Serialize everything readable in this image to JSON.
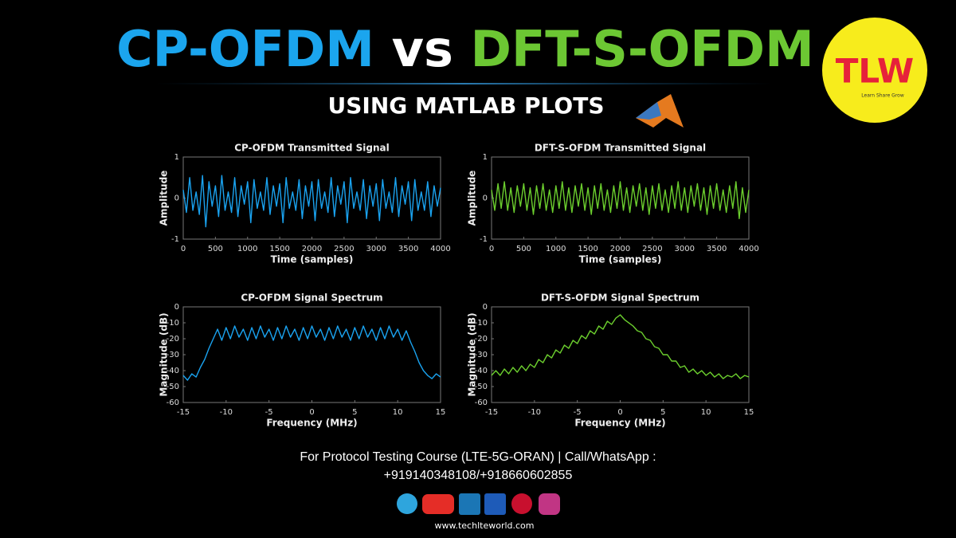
{
  "header": {
    "title_parts": [
      "CP-OFDM",
      "vs",
      "DFT-S-OFDM"
    ],
    "subtitle": "USING MATLAB PLOTS"
  },
  "logo": {
    "text": "TLW",
    "tagline": "Learn Share Grow"
  },
  "footer": {
    "line1": "For Protocol Testing Course (LTE-5G-ORAN) | Call/WhatsApp :",
    "line2": "+919140348108/+918660602855",
    "website": "www.techlteworld.com"
  },
  "chart_data": [
    {
      "type": "line",
      "title": "CP-OFDM Transmitted Signal",
      "xlabel": "Time (samples)",
      "ylabel": "Amplitude",
      "color": "#1aa3f0",
      "xlim": [
        0,
        4000
      ],
      "ylim": [
        -1,
        1
      ],
      "xticks": [
        0,
        500,
        1000,
        1500,
        2000,
        2500,
        3000,
        3500,
        4000
      ],
      "yticks": [
        -1,
        0,
        1
      ],
      "x": [
        0,
        50,
        100,
        150,
        200,
        250,
        300,
        350,
        400,
        450,
        500,
        550,
        600,
        650,
        700,
        750,
        800,
        850,
        900,
        950,
        1000,
        1050,
        1100,
        1150,
        1200,
        1250,
        1300,
        1350,
        1400,
        1450,
        1500,
        1550,
        1600,
        1650,
        1700,
        1750,
        1800,
        1850,
        1900,
        1950,
        2000,
        2050,
        2100,
        2150,
        2200,
        2250,
        2300,
        2350,
        2400,
        2450,
        2500,
        2550,
        2600,
        2650,
        2700,
        2750,
        2800,
        2850,
        2900,
        2950,
        3000,
        3050,
        3100,
        3150,
        3200,
        3250,
        3300,
        3350,
        3400,
        3450,
        3500,
        3550,
        3600,
        3650,
        3700,
        3750,
        3800,
        3850,
        3900,
        3950,
        4000
      ],
      "values": [
        0.2,
        -0.35,
        0.5,
        -0.3,
        0.15,
        -0.4,
        0.55,
        -0.7,
        0.4,
        -0.2,
        0.3,
        -0.45,
        0.55,
        -0.3,
        0.15,
        -0.35,
        0.5,
        -0.45,
        0.3,
        -0.15,
        0.4,
        -0.6,
        0.45,
        -0.25,
        0.15,
        -0.3,
        0.5,
        -0.4,
        0.3,
        -0.2,
        0.35,
        -0.6,
        0.5,
        -0.25,
        0.15,
        -0.3,
        0.45,
        -0.5,
        0.3,
        -0.2,
        0.4,
        -0.55,
        0.45,
        -0.25,
        0.15,
        -0.35,
        0.5,
        -0.45,
        0.3,
        -0.15,
        0.4,
        -0.6,
        0.5,
        -0.25,
        0.15,
        -0.3,
        0.45,
        -0.5,
        0.3,
        -0.2,
        0.35,
        -0.55,
        0.45,
        -0.25,
        0.15,
        -0.35,
        0.5,
        -0.45,
        0.3,
        -0.15,
        0.4,
        -0.55,
        0.45,
        -0.3,
        0.15,
        -0.3,
        0.4,
        -0.45,
        0.3,
        -0.2,
        0.25
      ]
    },
    {
      "type": "line",
      "title": "DFT-S-OFDM Transmitted Signal",
      "xlabel": "Time (samples)",
      "ylabel": "Amplitude",
      "color": "#6ccf2e",
      "xlim": [
        0,
        4000
      ],
      "ylim": [
        -1,
        1
      ],
      "xticks": [
        0,
        500,
        1000,
        1500,
        2000,
        2500,
        3000,
        3500,
        4000
      ],
      "yticks": [
        -1,
        0,
        1
      ],
      "x": [
        0,
        50,
        100,
        150,
        200,
        250,
        300,
        350,
        400,
        450,
        500,
        550,
        600,
        650,
        700,
        750,
        800,
        850,
        900,
        950,
        1000,
        1050,
        1100,
        1150,
        1200,
        1250,
        1300,
        1350,
        1400,
        1450,
        1500,
        1550,
        1600,
        1650,
        1700,
        1750,
        1800,
        1850,
        1900,
        1950,
        2000,
        2050,
        2100,
        2150,
        2200,
        2250,
        2300,
        2350,
        2400,
        2450,
        2500,
        2550,
        2600,
        2650,
        2700,
        2750,
        2800,
        2850,
        2900,
        2950,
        3000,
        3050,
        3100,
        3150,
        3200,
        3250,
        3300,
        3350,
        3400,
        3450,
        3500,
        3550,
        3600,
        3650,
        3700,
        3750,
        3800,
        3850,
        3900,
        3950,
        4000
      ],
      "values": [
        0.2,
        -0.3,
        0.35,
        -0.25,
        0.4,
        -0.3,
        0.25,
        -0.35,
        0.3,
        -0.2,
        0.35,
        -0.3,
        0.25,
        -0.4,
        0.3,
        -0.25,
        0.35,
        -0.3,
        0.2,
        -0.35,
        0.3,
        -0.25,
        0.4,
        -0.3,
        0.25,
        -0.35,
        0.3,
        -0.2,
        0.35,
        -0.3,
        0.25,
        -0.4,
        0.3,
        -0.25,
        0.35,
        -0.3,
        0.2,
        -0.35,
        0.3,
        -0.25,
        0.4,
        -0.3,
        0.25,
        -0.35,
        0.3,
        -0.2,
        0.35,
        -0.3,
        0.25,
        -0.4,
        0.3,
        -0.25,
        0.35,
        -0.3,
        0.2,
        -0.35,
        0.3,
        -0.25,
        0.4,
        -0.3,
        0.25,
        -0.35,
        0.3,
        -0.2,
        0.35,
        -0.3,
        0.25,
        -0.4,
        0.3,
        -0.25,
        0.35,
        -0.3,
        0.2,
        -0.35,
        0.3,
        -0.25,
        0.4,
        -0.5,
        0.25,
        -0.35,
        0.2
      ]
    },
    {
      "type": "line",
      "title": "CP-OFDM Signal Spectrum",
      "xlabel": "Frequency (MHz)",
      "ylabel": "Magnitude (dB)",
      "color": "#1aa3f0",
      "xlim": [
        -15,
        15
      ],
      "ylim": [
        -60,
        0
      ],
      "xticks": [
        -15,
        -10,
        -5,
        0,
        5,
        10,
        15
      ],
      "yticks": [
        -60,
        -50,
        -40,
        -30,
        -20,
        -10,
        0
      ],
      "x": [
        -15,
        -14.5,
        -14,
        -13.5,
        -13,
        -12.5,
        -12,
        -11.5,
        -11,
        -10.5,
        -10,
        -9.5,
        -9,
        -8.5,
        -8,
        -7.5,
        -7,
        -6.5,
        -6,
        -5.5,
        -5,
        -4.5,
        -4,
        -3.5,
        -3,
        -2.5,
        -2,
        -1.5,
        -1,
        -0.5,
        0,
        0.5,
        1,
        1.5,
        2,
        2.5,
        3,
        3.5,
        4,
        4.5,
        5,
        5.5,
        6,
        6.5,
        7,
        7.5,
        8,
        8.5,
        9,
        9.5,
        10,
        10.5,
        11,
        11.5,
        12,
        12.5,
        13,
        13.5,
        14,
        14.5,
        15
      ],
      "values": [
        -43,
        -46,
        -42,
        -44,
        -38,
        -33,
        -26,
        -20,
        -14,
        -21,
        -13,
        -20,
        -12,
        -19,
        -14,
        -21,
        -13,
        -20,
        -12,
        -19,
        -14,
        -21,
        -13,
        -20,
        -12,
        -19,
        -14,
        -21,
        -13,
        -20,
        -12,
        -19,
        -14,
        -21,
        -13,
        -20,
        -12,
        -19,
        -14,
        -21,
        -13,
        -20,
        -12,
        -19,
        -14,
        -21,
        -13,
        -20,
        -12,
        -19,
        -14,
        -21,
        -15,
        -22,
        -28,
        -35,
        -40,
        -43,
        -45,
        -42,
        -44
      ]
    },
    {
      "type": "line",
      "title": "DFT-S-OFDM Signal Spectrum",
      "xlabel": "Frequency (MHz)",
      "ylabel": "Magnitude (dB)",
      "color": "#6ccf2e",
      "xlim": [
        -15,
        15
      ],
      "ylim": [
        -60,
        0
      ],
      "xticks": [
        -15,
        -10,
        -5,
        0,
        5,
        10,
        15
      ],
      "yticks": [
        -60,
        -50,
        -40,
        -30,
        -20,
        -10,
        0
      ],
      "x": [
        -15,
        -14.5,
        -14,
        -13.5,
        -13,
        -12.5,
        -12,
        -11.5,
        -11,
        -10.5,
        -10,
        -9.5,
        -9,
        -8.5,
        -8,
        -7.5,
        -7,
        -6.5,
        -6,
        -5.5,
        -5,
        -4.5,
        -4,
        -3.5,
        -3,
        -2.5,
        -2,
        -1.5,
        -1,
        -0.5,
        0,
        0.5,
        1,
        1.5,
        2,
        2.5,
        3,
        3.5,
        4,
        4.5,
        5,
        5.5,
        6,
        6.5,
        7,
        7.5,
        8,
        8.5,
        9,
        9.5,
        10,
        10.5,
        11,
        11.5,
        12,
        12.5,
        13,
        13.5,
        14,
        14.5,
        15
      ],
      "values": [
        -43,
        -40,
        -43,
        -39,
        -42,
        -38,
        -41,
        -37,
        -40,
        -36,
        -38,
        -33,
        -35,
        -30,
        -32,
        -27,
        -29,
        -24,
        -26,
        -21,
        -23,
        -18,
        -20,
        -15,
        -17,
        -12,
        -14,
        -9,
        -11,
        -7,
        -5,
        -8,
        -10,
        -12,
        -15,
        -16,
        -20,
        -21,
        -25,
        -26,
        -30,
        -30,
        -34,
        -34,
        -38,
        -37,
        -41,
        -39,
        -42,
        -40,
        -43,
        -41,
        -44,
        -42,
        -45,
        -43,
        -44,
        -42,
        -45,
        -43,
        -44
      ]
    }
  ]
}
